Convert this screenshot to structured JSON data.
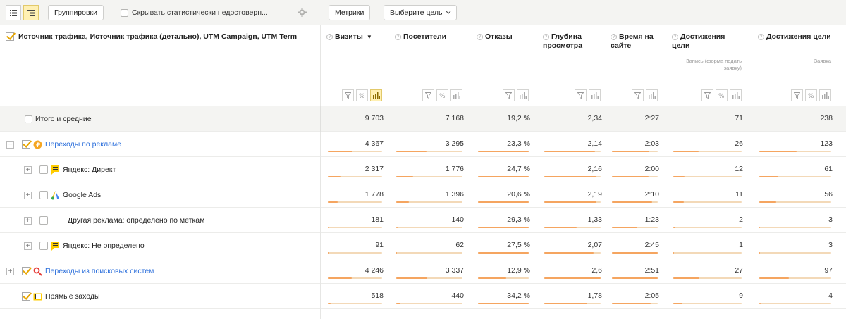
{
  "toolbar": {
    "group_label": "Группировки",
    "hide_label": "Скрывать статистически недостоверн...",
    "metrics_label": "Метрики",
    "goal_label": "Выберите цель"
  },
  "table": {
    "dimension_title": "Источник трафика, Источник трафика (детально), UTM Campaign, UTM Term",
    "columns": [
      {
        "title": "Визиты",
        "sort": "▼",
        "sub": ""
      },
      {
        "title": "Посетители",
        "sub": ""
      },
      {
        "title": "Отказы",
        "sub": ""
      },
      {
        "title": "Глубина просмотра",
        "sub": ""
      },
      {
        "title": "Время на сайте",
        "sub": ""
      },
      {
        "title": "Достижения цели",
        "sub": "Запись (форма подать заявку)"
      },
      {
        "title": "Достижения цели",
        "sub": "Заявка"
      }
    ],
    "total": {
      "label": "Итого и средние",
      "values": [
        "9 703",
        "7 168",
        "19,2 %",
        "2,34",
        "2:27",
        "71",
        "238"
      ]
    },
    "rows": [
      {
        "label": "Переходы по рекламе",
        "link": true,
        "expander": "−",
        "icon": "ad-icon",
        "values": [
          "4 367",
          "3 295",
          "23,3 %",
          "2,14",
          "2:03",
          "26",
          "123"
        ],
        "bars": [
          0.45,
          0.46,
          1.0,
          0.9,
          0.82,
          0.37,
          0.52
        ]
      },
      {
        "label": "Яндекс: Директ",
        "link": false,
        "expander": "+",
        "icon": "yandex-direct-icon",
        "values": [
          "2 317",
          "1 776",
          "24,7 %",
          "2,16",
          "2:00",
          "12",
          "61"
        ],
        "bars": [
          0.24,
          0.25,
          1.0,
          0.92,
          0.8,
          0.17,
          0.26
        ]
      },
      {
        "label": "Google Ads",
        "link": false,
        "expander": "+",
        "icon": "google-ads-icon",
        "values": [
          "1 778",
          "1 396",
          "20,6 %",
          "2,19",
          "2:10",
          "11",
          "56"
        ],
        "bars": [
          0.18,
          0.19,
          1.0,
          0.93,
          0.87,
          0.15,
          0.24
        ]
      },
      {
        "label": "Другая реклама: определено по меткам",
        "link": false,
        "expander": "+",
        "icon": "",
        "values": [
          "181",
          "140",
          "29,3 %",
          "1,33",
          "1:23",
          "2",
          "3"
        ],
        "bars": [
          0.02,
          0.02,
          1.0,
          0.57,
          0.56,
          0.03,
          0.01
        ]
      },
      {
        "label": "Яндекс: Не определено",
        "link": false,
        "expander": "+",
        "icon": "yandex-direct-icon",
        "values": [
          "91",
          "62",
          "27,5 %",
          "2,07",
          "2:45",
          "1",
          "3"
        ],
        "bars": [
          0.01,
          0.01,
          1.0,
          0.88,
          1.0,
          0.01,
          0.01
        ]
      },
      {
        "label": "Переходы из поисковых систем",
        "link": true,
        "expander": "+",
        "icon": "search-engine-icon",
        "values": [
          "4 246",
          "3 337",
          "12,9 %",
          "2,6",
          "2:51",
          "27",
          "97"
        ],
        "bars": [
          0.44,
          0.47,
          0.55,
          1.0,
          1.0,
          0.38,
          0.41
        ]
      },
      {
        "label": "Прямые заходы",
        "link": false,
        "expander": "",
        "icon": "direct-visit-icon",
        "values": [
          "518",
          "440",
          "34,2 %",
          "1,78",
          "2:05",
          "9",
          "4"
        ],
        "bars": [
          0.05,
          0.06,
          1.0,
          0.76,
          0.85,
          0.13,
          0.02
        ]
      }
    ]
  }
}
